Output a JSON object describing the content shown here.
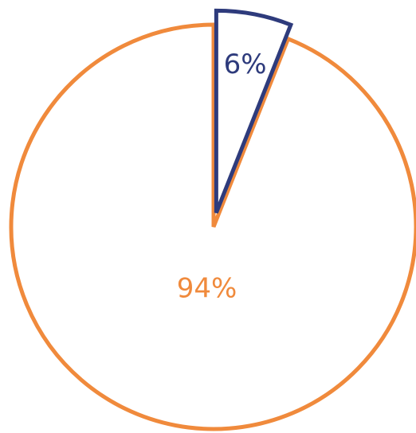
{
  "chart_data": {
    "type": "pie",
    "slices": [
      {
        "label": "6%",
        "value": 6,
        "color": "#2E3B7C",
        "exploded": true
      },
      {
        "label": "94%",
        "value": 94,
        "color": "#F08A3C",
        "exploded": false
      }
    ],
    "legend": "none",
    "start_angle": "12 o'clock",
    "direction": "clockwise"
  }
}
